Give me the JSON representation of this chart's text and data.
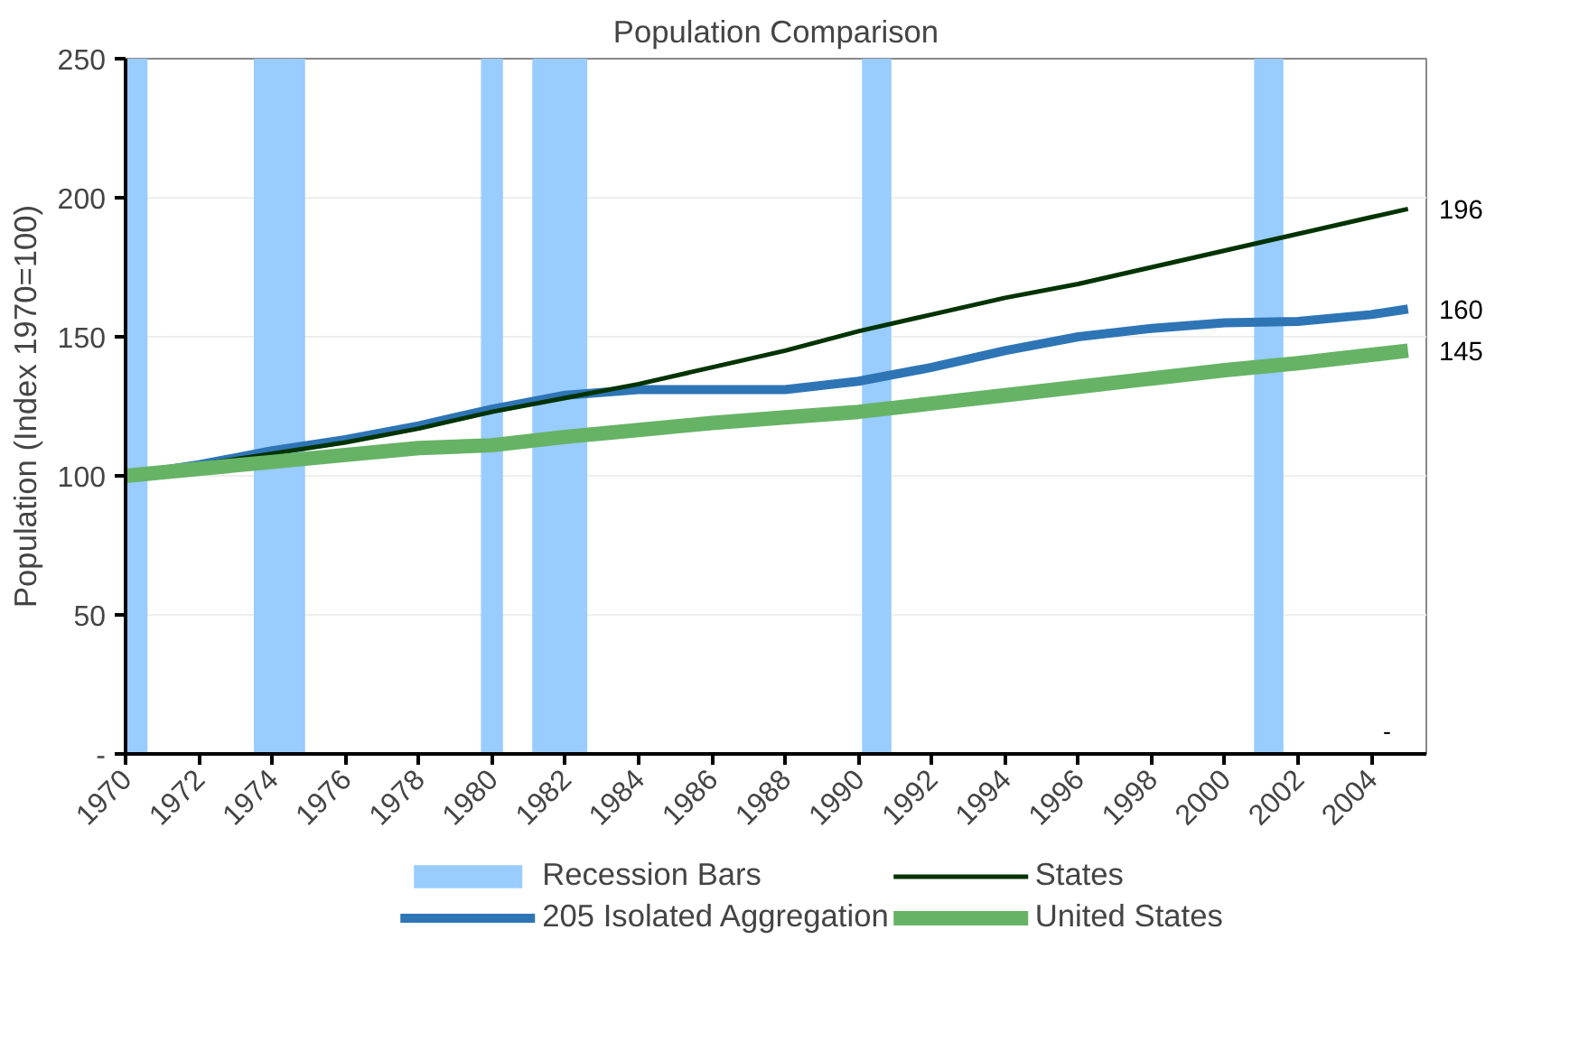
{
  "chart_data": {
    "type": "line",
    "title": "Population Comparison",
    "ylabel": "Population (Index 1970=100)",
    "xlim": [
      1970,
      2005.5
    ],
    "xticks": [
      1970,
      1972,
      1974,
      1976,
      1978,
      1980,
      1982,
      1984,
      1986,
      1988,
      1990,
      1992,
      1994,
      1996,
      1998,
      2000,
      2002,
      2004
    ],
    "ylim": [
      0,
      250
    ],
    "yticks": [
      {
        "value": 0,
        "label": "-"
      },
      50,
      100,
      150,
      200,
      250
    ],
    "grid": "y",
    "legend": "bottom",
    "bands": [
      {
        "axis": "x",
        "from": 1970,
        "to": 1970.6,
        "label": "Recession Bars",
        "color": "#99ccff"
      },
      {
        "axis": "x",
        "from": 1973.5,
        "to": 1974.9,
        "label": null,
        "color": "#99ccff"
      },
      {
        "axis": "x",
        "from": 1979.7,
        "to": 1980.3,
        "label": null,
        "color": "#99ccff"
      },
      {
        "axis": "x",
        "from": 1981.1,
        "to": 1982.6,
        "label": null,
        "color": "#99ccff"
      },
      {
        "axis": "x",
        "from": 1990.1,
        "to": 1990.9,
        "label": null,
        "color": "#99ccff"
      },
      {
        "axis": "x",
        "from": 2000.8,
        "to": 2001.6,
        "label": null,
        "color": "#99ccff"
      }
    ],
    "x": [
      1970,
      1972,
      1974,
      1976,
      1978,
      1980,
      1982,
      1984,
      1986,
      1988,
      1990,
      1992,
      1994,
      1996,
      1998,
      2000,
      2002,
      2004,
      2005
    ],
    "series": [
      {
        "name": "205 Isolated Aggregation",
        "color": "#2e75b6",
        "values": [
          100,
          104,
          109,
          113,
          118,
          124,
          129,
          131,
          131,
          131,
          134,
          139,
          145,
          150,
          153,
          155,
          155.5,
          158,
          160
        ],
        "value_labels": [
          null,
          null,
          null,
          null,
          null,
          null,
          null,
          null,
          null,
          null,
          null,
          null,
          null,
          null,
          null,
          null,
          null,
          null,
          "160"
        ]
      },
      {
        "name": "States",
        "color": "#003300",
        "values": [
          100,
          104,
          108,
          112,
          117,
          123,
          128,
          133,
          139,
          145,
          152,
          158,
          164,
          169,
          175,
          181,
          187,
          193,
          196
        ],
        "value_labels": [
          null,
          null,
          null,
          null,
          null,
          null,
          null,
          null,
          null,
          null,
          null,
          null,
          null,
          null,
          null,
          null,
          null,
          null,
          "196"
        ]
      },
      {
        "name": "United States",
        "color": "#66b366",
        "values": [
          100,
          102.5,
          105,
          107.5,
          110,
          111,
          114,
          116.5,
          119,
          121,
          123,
          126,
          129,
          132,
          135,
          138,
          140.5,
          143.5,
          145
        ],
        "value_labels": [
          null,
          null,
          null,
          null,
          null,
          null,
          null,
          null,
          null,
          null,
          null,
          null,
          null,
          null,
          null,
          null,
          null,
          null,
          "145"
        ]
      }
    ],
    "annotations": [
      "-"
    ]
  }
}
